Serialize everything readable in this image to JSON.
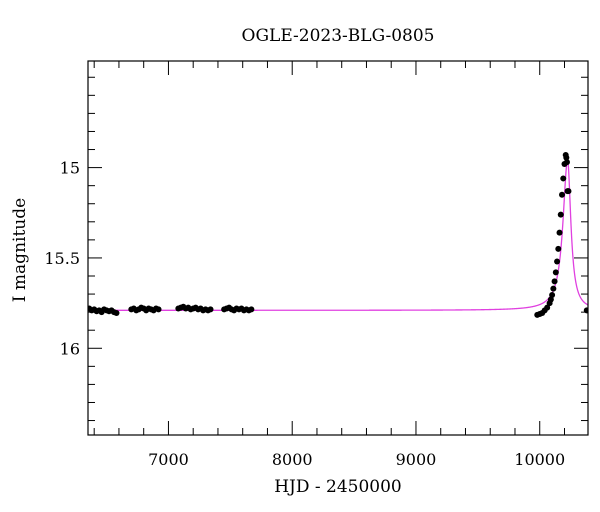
{
  "chart_data": {
    "type": "scatter",
    "title": "OGLE-2023-BLG-0805",
    "xlabel": "HJD - 2450000",
    "ylabel": "I magnitude",
    "xlim": [
      6350,
      10390
    ],
    "ylim": [
      16.48,
      14.41
    ],
    "y_inverted": true,
    "grid": false,
    "x_ticks": [
      7000,
      8000,
      9000,
      10000
    ],
    "x_tick_labels": [
      "7000",
      "8000",
      "9000",
      "10000"
    ],
    "x_minor_step": 200,
    "y_ticks": [
      15,
      15.5,
      16
    ],
    "y_tick_labels": [
      "15",
      "15.5",
      "16"
    ],
    "y_minor_step": 0.1,
    "model": {
      "color": "#e040e0",
      "baseline": 15.79,
      "t0": 10225,
      "peak": 14.96,
      "rise_width": 45,
      "fall_width": 32
    },
    "observations": {
      "color": "#000000",
      "points": [
        [
          6360,
          15.78
        ],
        [
          6380,
          15.79
        ],
        [
          6400,
          15.785
        ],
        [
          6420,
          15.795
        ],
        [
          6440,
          15.79
        ],
        [
          6460,
          15.8
        ],
        [
          6480,
          15.785
        ],
        [
          6500,
          15.79
        ],
        [
          6520,
          15.795
        ],
        [
          6540,
          15.79
        ],
        [
          6560,
          15.8
        ],
        [
          6580,
          15.805
        ],
        [
          6700,
          15.785
        ],
        [
          6720,
          15.78
        ],
        [
          6740,
          15.79
        ],
        [
          6760,
          15.785
        ],
        [
          6780,
          15.775
        ],
        [
          6800,
          15.78
        ],
        [
          6820,
          15.79
        ],
        [
          6840,
          15.78
        ],
        [
          6860,
          15.785
        ],
        [
          6880,
          15.79
        ],
        [
          6900,
          15.78
        ],
        [
          6920,
          15.785
        ],
        [
          7080,
          15.78
        ],
        [
          7100,
          15.775
        ],
        [
          7120,
          15.77
        ],
        [
          7140,
          15.78
        ],
        [
          7160,
          15.775
        ],
        [
          7180,
          15.785
        ],
        [
          7200,
          15.78
        ],
        [
          7220,
          15.775
        ],
        [
          7240,
          15.785
        ],
        [
          7260,
          15.78
        ],
        [
          7280,
          15.79
        ],
        [
          7300,
          15.785
        ],
        [
          7320,
          15.79
        ],
        [
          7340,
          15.785
        ],
        [
          7450,
          15.785
        ],
        [
          7470,
          15.78
        ],
        [
          7490,
          15.775
        ],
        [
          7510,
          15.785
        ],
        [
          7530,
          15.79
        ],
        [
          7550,
          15.78
        ],
        [
          7570,
          15.785
        ],
        [
          7590,
          15.78
        ],
        [
          7610,
          15.79
        ],
        [
          7630,
          15.785
        ],
        [
          7650,
          15.79
        ],
        [
          7670,
          15.785
        ],
        [
          9980,
          15.815
        ],
        [
          10000,
          15.81
        ],
        [
          10020,
          15.805
        ],
        [
          10040,
          15.79
        ],
        [
          10060,
          15.775
        ],
        [
          10080,
          15.75
        ],
        [
          10090,
          15.73
        ],
        [
          10100,
          15.705
        ],
        [
          10110,
          15.67
        ],
        [
          10120,
          15.63
        ],
        [
          10130,
          15.58
        ],
        [
          10140,
          15.52
        ],
        [
          10150,
          15.45
        ],
        [
          10160,
          15.36
        ],
        [
          10170,
          15.26
        ],
        [
          10180,
          15.15
        ],
        [
          10190,
          15.06
        ],
        [
          10200,
          14.98
        ],
        [
          10210,
          14.93
        ],
        [
          10215,
          14.945
        ],
        [
          10220,
          14.97
        ],
        [
          10225,
          15.13
        ],
        [
          10232,
          15.13
        ],
        [
          10380,
          15.79
        ]
      ]
    }
  }
}
